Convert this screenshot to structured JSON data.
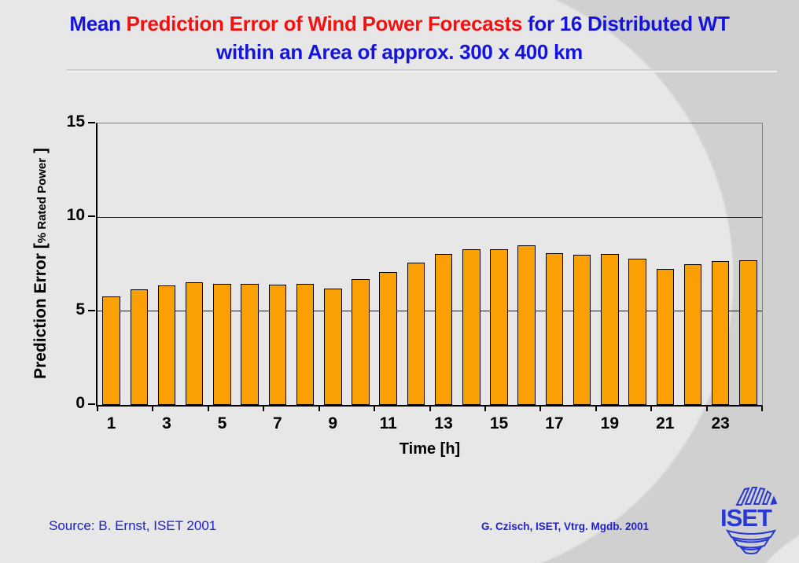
{
  "slide": {
    "title": {
      "part1": "Mean ",
      "part2": "Prediction Error of Wind Power Forecasts",
      "part3": " for 16 Distributed WT",
      "line2": "within an Area of approx. 300 x 400 km",
      "part1_color": "#1414dd",
      "part2_color": "#f41111",
      "line2_color": "#1414dd"
    },
    "footer_left": "Source: B. Ernst, ISET 2001",
    "footer_right": "G. Czisch, ISET, Vtrg. Mgdb. 2001",
    "logo_text": "ISET",
    "background_light": "#e7e7e7",
    "background_dark": "#d0d0d0"
  },
  "chart_data": {
    "type": "bar",
    "categories": [
      1,
      2,
      3,
      4,
      5,
      6,
      7,
      8,
      9,
      10,
      11,
      12,
      13,
      14,
      15,
      16,
      17,
      18,
      19,
      20,
      21,
      22,
      23,
      24
    ],
    "values": [
      5.8,
      6.15,
      6.35,
      6.55,
      6.45,
      6.45,
      6.4,
      6.45,
      6.2,
      6.7,
      7.1,
      7.6,
      8.05,
      8.3,
      8.3,
      8.5,
      8.1,
      8.0,
      8.05,
      7.8,
      7.25,
      7.5,
      7.65,
      7.7
    ],
    "title": "Mean Prediction Error of Wind Power Forecasts for 16 Distributed WT within an Area of approx. 300 x 400 km",
    "xlabel": "Time [h]",
    "ylabel": "Prediction Error [% Rated Power ]",
    "ylabel_main": "Prediction Error [",
    "ylabel_sub": "% Rated Power",
    "ylabel_close": " ]",
    "x_tick_labels": [
      "1",
      "3",
      "5",
      "7",
      "9",
      "11",
      "13",
      "15",
      "17",
      "19",
      "21",
      "23"
    ],
    "y_ticks": [
      0,
      5,
      10,
      15
    ],
    "y_gridlines": [
      5,
      10
    ],
    "ylim": [
      0,
      15
    ],
    "grid": true,
    "legend": "none",
    "bar_color": "#FAA005",
    "bar_border_color": "#000000",
    "frame_color": "#7f7f7f"
  }
}
